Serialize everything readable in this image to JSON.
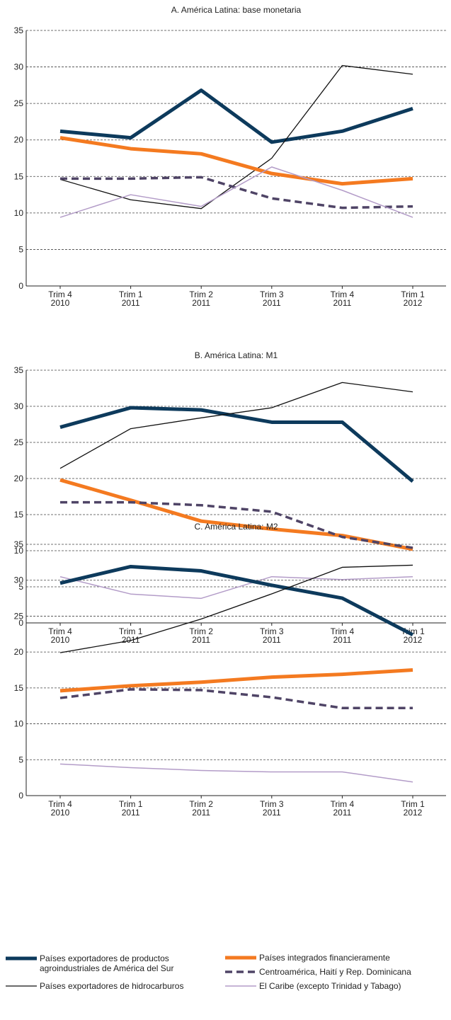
{
  "chart_data": [
    {
      "type": "line",
      "title": "A. América Latina: base monetaria",
      "categories": [
        "Trim 4\n2010",
        "Trim 1\n2011",
        "Trim 2\n2011",
        "Trim 3\n2011",
        "Trim 4\n2011",
        "Trim 1\n2012"
      ],
      "ylim": [
        0,
        35
      ],
      "yticks": [
        0,
        5,
        10,
        15,
        20,
        25,
        30,
        35
      ],
      "grid": true,
      "series": [
        {
          "values": [
            21.2,
            20.3,
            26.8,
            19.7,
            21.2,
            24.3
          ]
        },
        {
          "values": [
            14.6,
            11.8,
            10.6,
            17.5,
            30.2,
            29.0
          ]
        },
        {
          "values": [
            20.3,
            18.8,
            18.1,
            15.4,
            14.0,
            14.7
          ]
        },
        {
          "values": [
            14.7,
            14.7,
            14.9,
            12.0,
            10.7,
            10.9
          ]
        },
        {
          "values": [
            9.4,
            12.5,
            10.9,
            16.3,
            13.1,
            9.4
          ]
        }
      ]
    },
    {
      "type": "line",
      "title": "B. América Latina: M1",
      "categories": [
        "Trim 4\n2010",
        "Trim 1\n2011",
        "Trim 2\n2011",
        "Trim 3\n2011",
        "Trim 4\n2011",
        "Trim 1\n2012"
      ],
      "ylim": [
        0,
        35
      ],
      "yticks": [
        0,
        5,
        10,
        15,
        20,
        25,
        30,
        35
      ],
      "grid": true,
      "series": [
        {
          "values": [
            27.1,
            29.8,
            29.5,
            27.8,
            27.8,
            19.6
          ]
        },
        {
          "values": [
            21.4,
            26.9,
            28.4,
            29.8,
            33.3,
            32.0
          ]
        },
        {
          "values": [
            19.8,
            17.0,
            14.1,
            13.0,
            12.1,
            10.2
          ]
        },
        {
          "values": [
            16.7,
            16.7,
            16.3,
            15.4,
            11.9,
            10.4
          ]
        },
        {
          "values": [
            6.4,
            4.0,
            3.4,
            6.4,
            6.0,
            6.4
          ]
        }
      ]
    },
    {
      "type": "line",
      "title": "C. América Latina: M2",
      "categories": [
        "Trim 4\n2010",
        "Trim 1\n2011",
        "Trim 2\n2011",
        "Trim 3\n2011",
        "Trim 4\n2011",
        "Trim 1\n2012"
      ],
      "ylim": [
        0,
        35
      ],
      "yticks": [
        0,
        5,
        10,
        15,
        20,
        25,
        30,
        35
      ],
      "grid": true,
      "series": [
        {
          "values": [
            29.6,
            31.9,
            31.3,
            29.3,
            27.5,
            22.4
          ]
        },
        {
          "values": [
            19.9,
            21.6,
            24.6,
            28.1,
            31.8,
            32.1
          ]
        },
        {
          "values": [
            14.6,
            15.3,
            15.8,
            16.5,
            16.9,
            17.5
          ]
        },
        {
          "values": [
            13.6,
            14.8,
            14.7,
            13.7,
            12.2,
            12.2
          ]
        },
        {
          "values": [
            4.4,
            3.9,
            3.5,
            3.3,
            3.3,
            1.9
          ]
        }
      ]
    }
  ],
  "legend": {
    "entries": [
      {
        "name": "Países exportadores de productos\nagroindustriales de América del Sur",
        "color": "#0d3a5c"
      },
      {
        "name": "Países exportadores de hidrocarburos",
        "color": "#111111"
      },
      {
        "name": "Países integrados financieramente",
        "color": "#f47a20"
      },
      {
        "name": "Centroamérica, Haití y Rep. Dominicana",
        "color": "#4f4466"
      },
      {
        "name": "El Caribe (excepto Trinidad y Tabago)",
        "color": "#b39cc8"
      }
    ]
  }
}
